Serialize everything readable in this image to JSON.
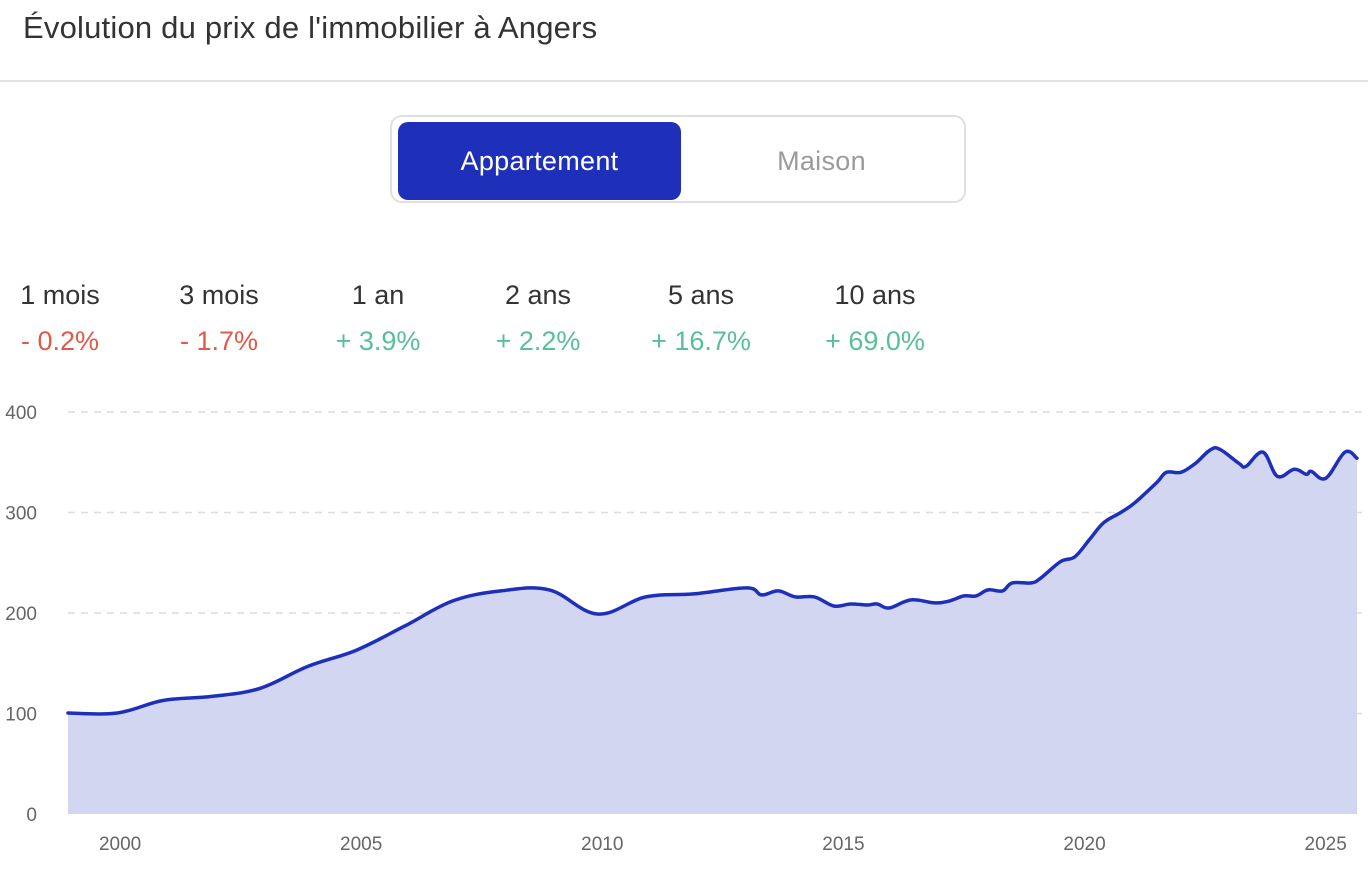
{
  "header": {
    "title": "Évolution du prix de l'immobilier à Angers"
  },
  "toggle": {
    "options": [
      {
        "label": "Appartement",
        "active": true
      },
      {
        "label": "Maison",
        "active": false
      }
    ],
    "active_color": "#1e30b9"
  },
  "stats": [
    {
      "label": "1 mois",
      "value": "- 0.2%",
      "trend": "negative"
    },
    {
      "label": "3 mois",
      "value": "- 1.7%",
      "trend": "negative"
    },
    {
      "label": "1 an",
      "value": "+ 3.9%",
      "trend": "positive"
    },
    {
      "label": "2 ans",
      "value": "+ 2.2%",
      "trend": "positive"
    },
    {
      "label": "5 ans",
      "value": "+ 16.7%",
      "trend": "positive"
    },
    {
      "label": "10 ans",
      "value": "+ 69.0%",
      "trend": "positive"
    }
  ],
  "colors": {
    "negative": "#e05a4a",
    "positive": "#58bf99",
    "line": "#1e30b9",
    "area": "#d2d6f0",
    "grid": "#dcdcdc"
  },
  "chart_data": {
    "type": "area",
    "title": "",
    "xlabel": "",
    "ylabel": "",
    "xlim": [
      1998.92,
      2025.65
    ],
    "ylim": [
      0,
      400
    ],
    "grid": true,
    "legend": "none",
    "x_ticks": [
      2000,
      2005,
      2010,
      2015,
      2020,
      2025
    ],
    "x_tick_labels": [
      "2000",
      "2005",
      "2010",
      "2015",
      "2020",
      "2025"
    ],
    "y_ticks": [
      0,
      100,
      200,
      300,
      400
    ],
    "y_tick_labels": [
      "0",
      "100",
      "200",
      "300",
      "400"
    ],
    "series": [
      {
        "name": "Appartement",
        "x": [
          1998.92,
          1999.94,
          2000.9,
          2001.9,
          2002.9,
          2003.9,
          2004.9,
          2005.9,
          2006.9,
          2007.9,
          2008.9,
          2009.9,
          2010.9,
          2011.9,
          2013.0,
          2013.3,
          2013.65,
          2014.0,
          2014.4,
          2014.8,
          2015.15,
          2015.5,
          2015.7,
          2015.95,
          2016.4,
          2016.9,
          2017.2,
          2017.5,
          2017.75,
          2018.0,
          2018.3,
          2018.5,
          2018.9,
          2019.1,
          2019.5,
          2019.8,
          2020.1,
          2020.4,
          2020.75,
          2021.05,
          2021.5,
          2021.7,
          2022.0,
          2022.3,
          2022.6,
          2022.8,
          2023.2,
          2023.35,
          2023.7,
          2024.0,
          2024.35,
          2024.6,
          2024.7,
          2025.0,
          2025.4,
          2025.65
        ],
        "y": [
          100.5,
          100.5,
          113,
          117,
          125,
          147,
          163,
          187,
          212,
          222,
          223,
          199,
          216,
          219,
          225,
          218,
          222,
          216,
          216,
          207,
          209,
          208,
          209,
          205,
          213,
          210,
          212,
          217,
          217,
          223,
          222,
          230,
          230,
          235,
          251,
          256,
          273,
          290,
          300,
          310,
          330,
          340,
          340,
          349,
          362,
          363,
          349,
          346,
          360,
          336,
          343,
          338,
          341,
          334,
          360,
          354
        ]
      }
    ]
  }
}
